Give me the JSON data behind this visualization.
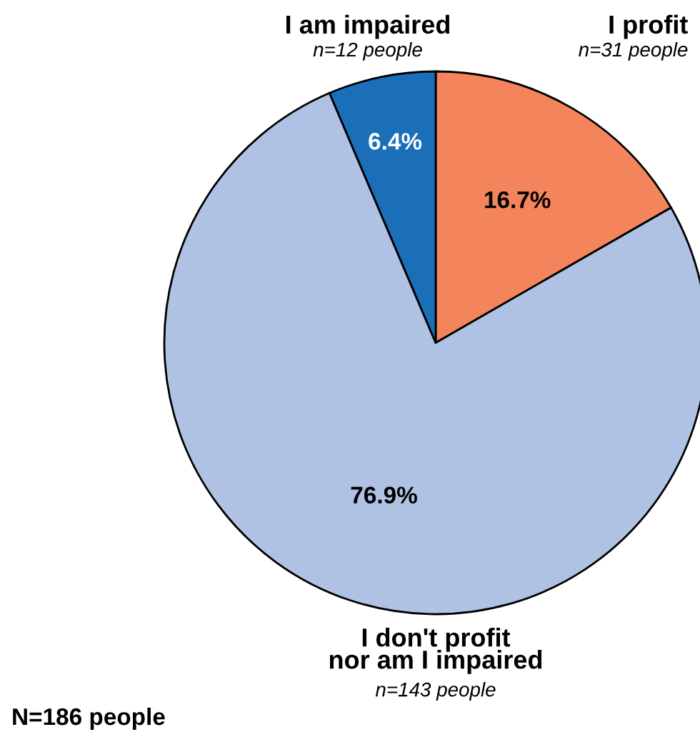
{
  "chart_data": {
    "type": "pie",
    "categories": [
      "I profit",
      "I don't profit\nnor am I impaired",
      "I am impaired"
    ],
    "values": [
      16.7,
      76.9,
      6.4
    ],
    "colors": [
      "#f4845c",
      "#b0c2e3",
      "#1a6fb8"
    ],
    "value_labels": [
      "16.7%",
      "76.9%",
      "6.4%"
    ],
    "annotations": [
      "n=31 people",
      "n=143 people",
      "n=12 people",
      "N=186 people"
    ]
  }
}
